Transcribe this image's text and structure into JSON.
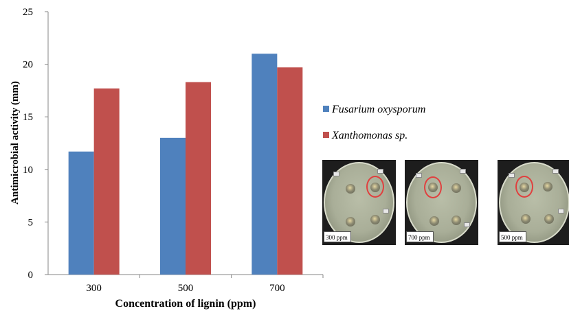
{
  "chart_data": {
    "type": "bar",
    "categories": [
      "300",
      "500",
      "700"
    ],
    "series": [
      {
        "name": "Fusarium oxysporum",
        "values": [
          11.7,
          13.0,
          21.0
        ],
        "color": "#4f81bd"
      },
      {
        "name": "Xanthomonas sp.",
        "values": [
          17.7,
          18.3,
          19.7
        ],
        "color": "#c0504d"
      }
    ],
    "xlabel": "Concentration of lignin (ppm)",
    "ylabel": "Antimicrobial activity (mm)",
    "ylim": [
      0,
      25
    ],
    "yticks": [
      "0",
      "5",
      "10",
      "15",
      "20",
      "25"
    ],
    "grid": false,
    "legend_position": "right"
  },
  "photos": [
    {
      "label": "300 ppm"
    },
    {
      "label": "700 ppm"
    },
    {
      "label": "500 ppm"
    }
  ]
}
